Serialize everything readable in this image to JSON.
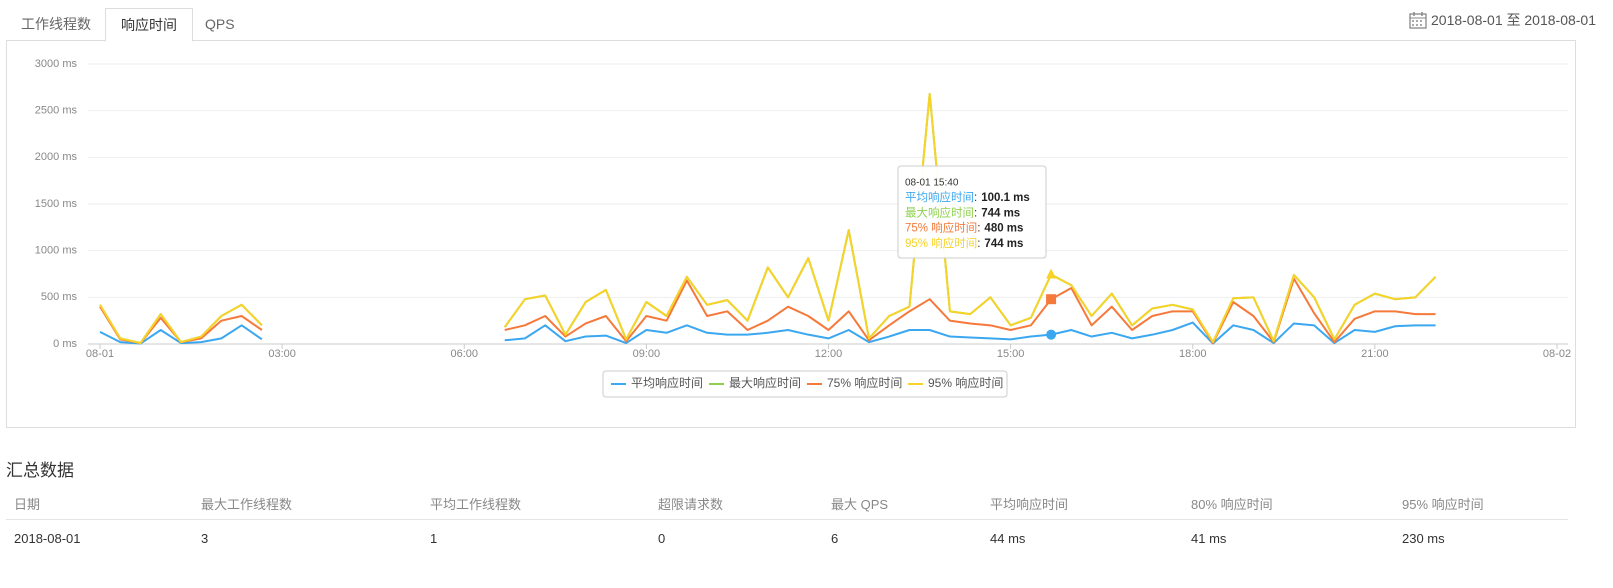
{
  "tabs": [
    "工作线程数",
    "响应时间",
    "QPS"
  ],
  "date_range": "2018-08-01 至 2018-08-01",
  "chart_data": {
    "type": "line",
    "x": [
      0,
      20,
      40,
      60,
      80,
      100,
      120,
      140,
      160,
      180,
      200,
      220,
      240,
      260,
      280,
      300,
      320,
      340,
      360,
      380,
      400,
      420,
      440,
      460,
      480,
      500,
      520,
      540,
      560,
      580,
      600,
      620,
      640,
      660,
      680,
      700,
      720,
      740,
      760,
      780,
      800,
      820,
      840,
      860,
      880,
      900,
      920,
      940,
      960,
      980,
      1000,
      1020,
      1040,
      1060,
      1080,
      1100,
      1120,
      1140,
      1160,
      1180,
      1200,
      1220,
      1240,
      1260,
      1280,
      1300,
      1320,
      1340,
      1360,
      1380,
      1400,
      1420
    ],
    "xlim": [
      0,
      1440
    ],
    "xticks": [
      {
        "value": 0,
        "label": "08-01"
      },
      {
        "value": 180,
        "label": "03:00"
      },
      {
        "value": 360,
        "label": "06:00"
      },
      {
        "value": 540,
        "label": "09:00"
      },
      {
        "value": 720,
        "label": "12:00"
      },
      {
        "value": 900,
        "label": "15:00"
      },
      {
        "value": 1080,
        "label": "18:00"
      },
      {
        "value": 1260,
        "label": "21:00"
      },
      {
        "value": 1440,
        "label": "08-02"
      }
    ],
    "ylim": [
      0,
      3000
    ],
    "yticks": [
      {
        "value": 0,
        "label": "0 ms"
      },
      {
        "value": 500,
        "label": "500 ms"
      },
      {
        "value": 1000,
        "label": "1000 ms"
      },
      {
        "value": 1500,
        "label": "1500 ms"
      },
      {
        "value": 2000,
        "label": "2000 ms"
      },
      {
        "value": 2500,
        "label": "2500 ms"
      },
      {
        "value": 3000,
        "label": "3000 ms"
      }
    ],
    "grid": true,
    "series": [
      {
        "name": "平均响应时间",
        "color": "#3ba7f0",
        "values": [
          130,
          20,
          5,
          150,
          10,
          20,
          60,
          200,
          50,
          null,
          null,
          null,
          null,
          null,
          null,
          null,
          null,
          null,
          null,
          null,
          40,
          60,
          200,
          30,
          80,
          90,
          10,
          150,
          120,
          200,
          120,
          100,
          100,
          120,
          150,
          100,
          60,
          150,
          20,
          80,
          150,
          150,
          80,
          70,
          60,
          50,
          80,
          100.1,
          150,
          80,
          120,
          60,
          100,
          150,
          230,
          5,
          200,
          150,
          10,
          220,
          200,
          10,
          150,
          130,
          190,
          200,
          200,
          null,
          null,
          null,
          null,
          null
        ]
      },
      {
        "name": "最大响应时间",
        "color": "#8fd14f",
        "values": [
          420,
          60,
          10,
          320,
          20,
          80,
          300,
          420,
          200,
          null,
          null,
          null,
          null,
          null,
          null,
          null,
          null,
          null,
          null,
          null,
          180,
          480,
          520,
          100,
          450,
          580,
          50,
          450,
          300,
          720,
          420,
          470,
          250,
          820,
          500,
          920,
          250,
          1220,
          60,
          300,
          400,
          2680,
          350,
          320,
          500,
          200,
          280,
          744,
          630,
          300,
          540,
          200,
          380,
          420,
          370,
          20,
          490,
          500,
          30,
          740,
          500,
          50,
          420,
          540,
          480,
          500,
          720,
          null,
          null,
          null,
          null,
          null
        ]
      },
      {
        "name": "75% 响应时间",
        "color": "#f5793a",
        "values": [
          400,
          50,
          10,
          280,
          20,
          60,
          250,
          300,
          150,
          null,
          null,
          null,
          null,
          null,
          null,
          null,
          null,
          null,
          null,
          null,
          150,
          200,
          300,
          80,
          220,
          300,
          30,
          300,
          250,
          680,
          300,
          350,
          150,
          250,
          400,
          300,
          150,
          350,
          40,
          200,
          350,
          480,
          250,
          220,
          200,
          150,
          200,
          480,
          600,
          200,
          400,
          150,
          300,
          350,
          350,
          10,
          450,
          300,
          20,
          700,
          330,
          20,
          270,
          350,
          350,
          320,
          320,
          null,
          null,
          null,
          null,
          null
        ]
      },
      {
        "name": "95% 响应时间",
        "color": "#f7d32a",
        "values": [
          420,
          60,
          10,
          320,
          20,
          80,
          300,
          420,
          200,
          null,
          null,
          null,
          null,
          null,
          null,
          null,
          null,
          null,
          null,
          null,
          180,
          480,
          520,
          100,
          450,
          580,
          50,
          450,
          300,
          720,
          420,
          470,
          250,
          820,
          500,
          920,
          250,
          1220,
          60,
          300,
          400,
          2680,
          350,
          320,
          500,
          200,
          280,
          744,
          630,
          300,
          540,
          200,
          380,
          420,
          370,
          20,
          490,
          500,
          30,
          740,
          500,
          50,
          420,
          540,
          480,
          500,
          720,
          null,
          null,
          null,
          null,
          null
        ]
      }
    ],
    "tooltip": {
      "index": 47,
      "title": "08-01 15:40",
      "separator": ":",
      "labels": [
        "100.1 ms",
        "744 ms",
        "480 ms",
        "744 ms"
      ]
    }
  },
  "summary": {
    "title": "汇总数据",
    "columns": [
      "日期",
      "最大工作线程数",
      "平均工作线程数",
      "超限请求数",
      "最大 QPS",
      "平均响应时间",
      "80% 响应时间",
      "95% 响应时间"
    ],
    "rows": [
      [
        "2018-08-01",
        3,
        1,
        0,
        6,
        "44 ms",
        "41 ms",
        "230 ms"
      ]
    ]
  }
}
